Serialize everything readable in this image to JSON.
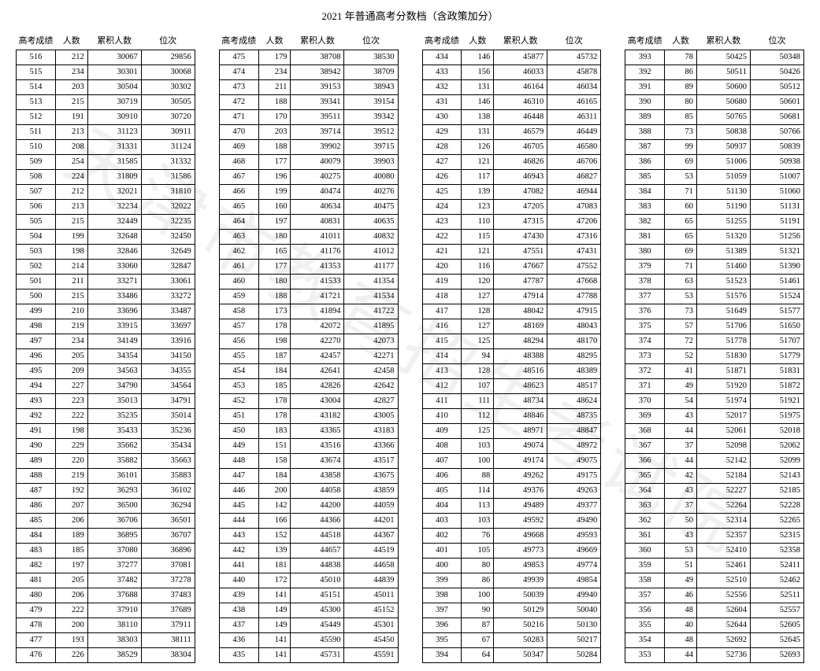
{
  "title": "2021 年普通高考分数档（含政策加分）",
  "watermark": "天津市教育招生考试院",
  "headers": [
    "高考成绩",
    "人数",
    "累积人数",
    "位次"
  ],
  "tables": [
    [
      [
        516,
        212,
        30067,
        29856
      ],
      [
        515,
        234,
        30301,
        30068
      ],
      [
        514,
        203,
        30504,
        30302
      ],
      [
        513,
        215,
        30719,
        30505
      ],
      [
        512,
        191,
        30910,
        30720
      ],
      [
        511,
        213,
        31123,
        30911
      ],
      [
        510,
        208,
        31331,
        31124
      ],
      [
        509,
        254,
        31585,
        31332
      ],
      [
        508,
        224,
        31809,
        31586
      ],
      [
        507,
        212,
        32021,
        31810
      ],
      [
        506,
        213,
        32234,
        32022
      ],
      [
        505,
        215,
        32449,
        32235
      ],
      [
        504,
        199,
        32648,
        32450
      ],
      [
        503,
        198,
        32846,
        32649
      ],
      [
        502,
        214,
        33060,
        32847
      ],
      [
        501,
        211,
        33271,
        33061
      ],
      [
        500,
        215,
        33486,
        33272
      ],
      [
        499,
        210,
        33696,
        33487
      ],
      [
        498,
        219,
        33915,
        33697
      ],
      [
        497,
        234,
        34149,
        33916
      ],
      [
        496,
        205,
        34354,
        34150
      ],
      [
        495,
        209,
        34563,
        34355
      ],
      [
        494,
        227,
        34790,
        34564
      ],
      [
        493,
        223,
        35013,
        34791
      ],
      [
        492,
        222,
        35235,
        35014
      ],
      [
        491,
        198,
        35433,
        35236
      ],
      [
        490,
        229,
        35662,
        35434
      ],
      [
        489,
        220,
        35882,
        35663
      ],
      [
        488,
        219,
        36101,
        35883
      ],
      [
        487,
        192,
        36293,
        36102
      ],
      [
        486,
        207,
        36500,
        36294
      ],
      [
        485,
        206,
        36706,
        36501
      ],
      [
        484,
        189,
        36895,
        36707
      ],
      [
        483,
        185,
        37080,
        36896
      ],
      [
        482,
        197,
        37277,
        37081
      ],
      [
        481,
        205,
        37482,
        37278
      ],
      [
        480,
        206,
        37688,
        37483
      ],
      [
        479,
        222,
        37910,
        37689
      ],
      [
        478,
        200,
        38110,
        37911
      ],
      [
        477,
        193,
        38303,
        38111
      ],
      [
        476,
        226,
        38529,
        38304
      ]
    ],
    [
      [
        475,
        179,
        38708,
        38530
      ],
      [
        474,
        234,
        38942,
        38709
      ],
      [
        473,
        211,
        39153,
        38943
      ],
      [
        472,
        188,
        39341,
        39154
      ],
      [
        471,
        170,
        39511,
        39342
      ],
      [
        470,
        203,
        39714,
        39512
      ],
      [
        469,
        188,
        39902,
        39715
      ],
      [
        468,
        177,
        40079,
        39903
      ],
      [
        467,
        196,
        40275,
        40080
      ],
      [
        466,
        199,
        40474,
        40276
      ],
      [
        465,
        160,
        40634,
        40475
      ],
      [
        464,
        197,
        40831,
        40635
      ],
      [
        463,
        180,
        41011,
        40832
      ],
      [
        462,
        165,
        41176,
        41012
      ],
      [
        461,
        177,
        41353,
        41177
      ],
      [
        460,
        180,
        41533,
        41354
      ],
      [
        459,
        188,
        41721,
        41534
      ],
      [
        458,
        173,
        41894,
        41722
      ],
      [
        457,
        178,
        42072,
        41895
      ],
      [
        456,
        198,
        42270,
        42073
      ],
      [
        455,
        187,
        42457,
        42271
      ],
      [
        454,
        184,
        42641,
        42458
      ],
      [
        453,
        185,
        42826,
        42642
      ],
      [
        452,
        178,
        43004,
        42827
      ],
      [
        451,
        178,
        43182,
        43005
      ],
      [
        450,
        183,
        43365,
        43183
      ],
      [
        449,
        151,
        43516,
        43366
      ],
      [
        448,
        158,
        43674,
        43517
      ],
      [
        447,
        184,
        43858,
        43675
      ],
      [
        446,
        200,
        44058,
        43859
      ],
      [
        445,
        142,
        44200,
        44059
      ],
      [
        444,
        166,
        44366,
        44201
      ],
      [
        443,
        152,
        44518,
        44367
      ],
      [
        442,
        139,
        44657,
        44519
      ],
      [
        441,
        181,
        44838,
        44658
      ],
      [
        440,
        172,
        45010,
        44839
      ],
      [
        439,
        141,
        45151,
        45011
      ],
      [
        438,
        149,
        45300,
        45152
      ],
      [
        437,
        149,
        45449,
        45301
      ],
      [
        436,
        141,
        45590,
        45450
      ],
      [
        435,
        141,
        45731,
        45591
      ]
    ],
    [
      [
        434,
        146,
        45877,
        45732
      ],
      [
        433,
        156,
        46033,
        45878
      ],
      [
        432,
        131,
        46164,
        46034
      ],
      [
        431,
        146,
        46310,
        46165
      ],
      [
        430,
        138,
        46448,
        46311
      ],
      [
        429,
        131,
        46579,
        46449
      ],
      [
        428,
        126,
        46705,
        46580
      ],
      [
        427,
        121,
        46826,
        46706
      ],
      [
        426,
        117,
        46943,
        46827
      ],
      [
        425,
        139,
        47082,
        46944
      ],
      [
        424,
        123,
        47205,
        47083
      ],
      [
        423,
        110,
        47315,
        47206
      ],
      [
        422,
        115,
        47430,
        47316
      ],
      [
        421,
        121,
        47551,
        47431
      ],
      [
        420,
        116,
        47667,
        47552
      ],
      [
        419,
        120,
        47787,
        47668
      ],
      [
        418,
        127,
        47914,
        47788
      ],
      [
        417,
        128,
        48042,
        47915
      ],
      [
        416,
        127,
        48169,
        48043
      ],
      [
        415,
        125,
        48294,
        48170
      ],
      [
        414,
        94,
        48388,
        48295
      ],
      [
        413,
        128,
        48516,
        48389
      ],
      [
        412,
        107,
        48623,
        48517
      ],
      [
        411,
        111,
        48734,
        48624
      ],
      [
        410,
        112,
        48846,
        48735
      ],
      [
        409,
        125,
        48971,
        48847
      ],
      [
        408,
        103,
        49074,
        48972
      ],
      [
        407,
        100,
        49174,
        49075
      ],
      [
        406,
        88,
        49262,
        49175
      ],
      [
        405,
        114,
        49376,
        49263
      ],
      [
        404,
        113,
        49489,
        49377
      ],
      [
        403,
        103,
        49592,
        49490
      ],
      [
        402,
        76,
        49668,
        49593
      ],
      [
        401,
        105,
        49773,
        49669
      ],
      [
        400,
        80,
        49853,
        49774
      ],
      [
        399,
        86,
        49939,
        49854
      ],
      [
        398,
        100,
        50039,
        49940
      ],
      [
        397,
        90,
        50129,
        50040
      ],
      [
        396,
        87,
        50216,
        50130
      ],
      [
        395,
        67,
        50283,
        50217
      ],
      [
        394,
        64,
        50347,
        50284
      ]
    ],
    [
      [
        393,
        78,
        50425,
        50348
      ],
      [
        392,
        86,
        50511,
        50426
      ],
      [
        391,
        89,
        50600,
        50512
      ],
      [
        390,
        80,
        50680,
        50601
      ],
      [
        389,
        85,
        50765,
        50681
      ],
      [
        388,
        73,
        50838,
        50766
      ],
      [
        387,
        99,
        50937,
        50839
      ],
      [
        386,
        69,
        51006,
        50938
      ],
      [
        385,
        53,
        51059,
        51007
      ],
      [
        384,
        71,
        51130,
        51060
      ],
      [
        383,
        60,
        51190,
        51131
      ],
      [
        382,
        65,
        51255,
        51191
      ],
      [
        381,
        65,
        51320,
        51256
      ],
      [
        380,
        69,
        51389,
        51321
      ],
      [
        379,
        71,
        51460,
        51390
      ],
      [
        378,
        63,
        51523,
        51461
      ],
      [
        377,
        53,
        51576,
        51524
      ],
      [
        376,
        73,
        51649,
        51577
      ],
      [
        375,
        57,
        51706,
        51650
      ],
      [
        374,
        72,
        51778,
        51707
      ],
      [
        373,
        52,
        51830,
        51779
      ],
      [
        372,
        41,
        51871,
        51831
      ],
      [
        371,
        49,
        51920,
        51872
      ],
      [
        370,
        54,
        51974,
        51921
      ],
      [
        369,
        43,
        52017,
        51975
      ],
      [
        368,
        44,
        52061,
        52018
      ],
      [
        367,
        37,
        52098,
        52062
      ],
      [
        366,
        44,
        52142,
        52099
      ],
      [
        365,
        42,
        52184,
        52143
      ],
      [
        364,
        43,
        52227,
        52185
      ],
      [
        363,
        37,
        52264,
        52228
      ],
      [
        362,
        50,
        52314,
        52265
      ],
      [
        361,
        43,
        52357,
        52315
      ],
      [
        360,
        53,
        52410,
        52358
      ],
      [
        359,
        51,
        52461,
        52411
      ],
      [
        358,
        49,
        52510,
        52462
      ],
      [
        357,
        46,
        52556,
        52511
      ],
      [
        356,
        48,
        52604,
        52557
      ],
      [
        355,
        40,
        52644,
        52605
      ],
      [
        354,
        48,
        52692,
        52645
      ],
      [
        353,
        44,
        52736,
        52693
      ]
    ]
  ]
}
